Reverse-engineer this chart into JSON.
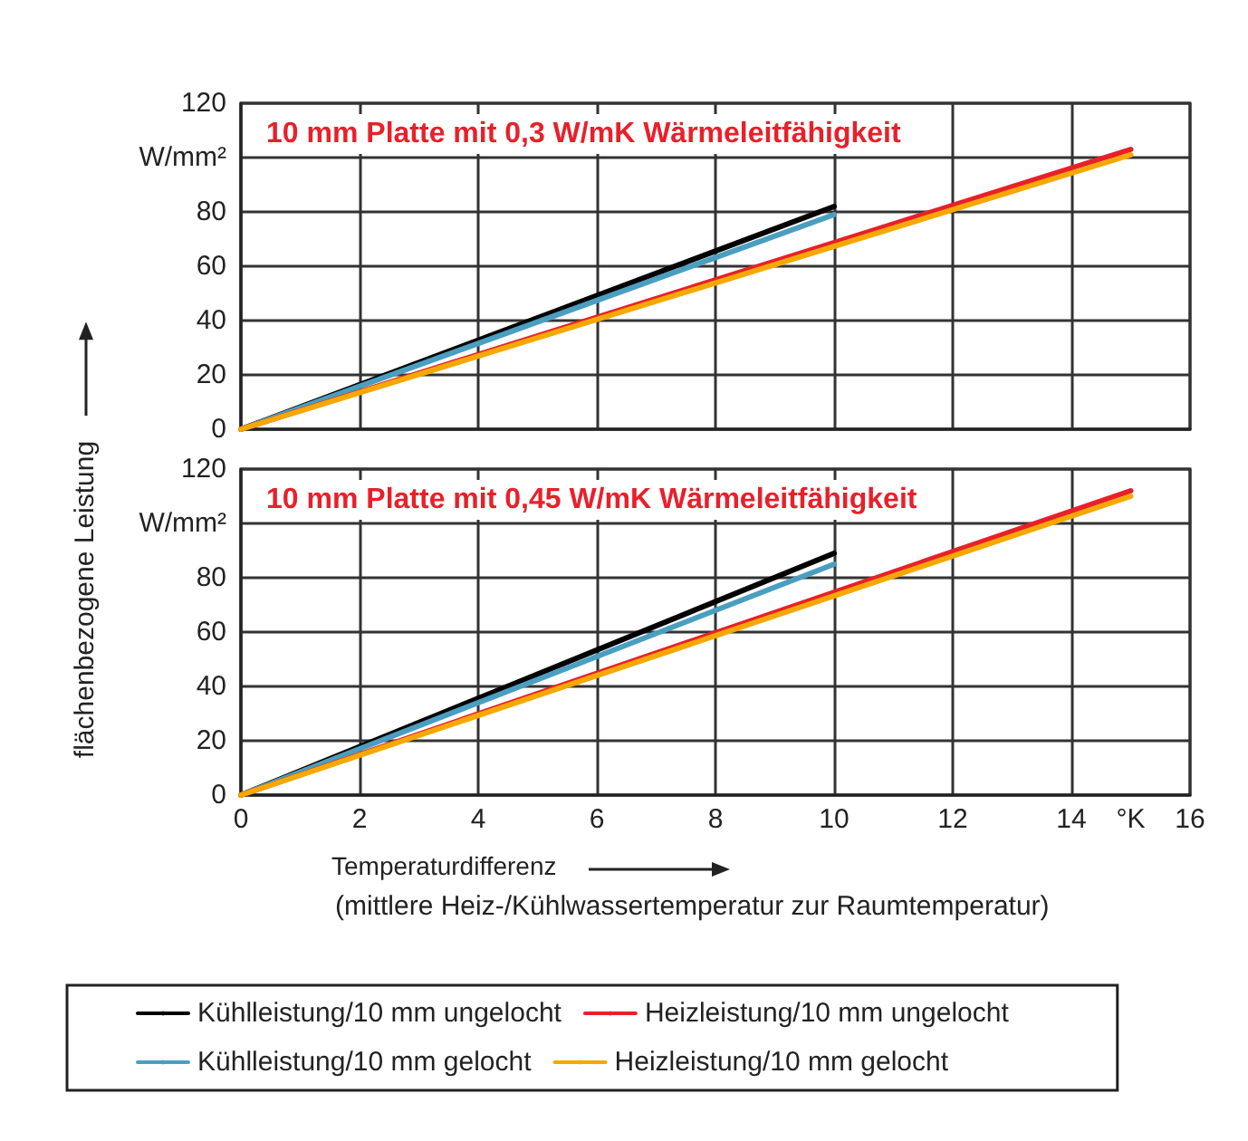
{
  "chart_data": [
    {
      "type": "line",
      "title": "10 mm Platte mit 0,3 W/mK Wärmeleitfähigkeit",
      "ylabel": "flächenbezogene Leistung",
      "xlim": [
        0,
        16
      ],
      "xticks": [
        0,
        2,
        4,
        6,
        8,
        10,
        12,
        14,
        16
      ],
      "ylim": [
        0,
        120
      ],
      "yticks": [
        0,
        20,
        40,
        60,
        80,
        {
          "value": 100,
          "label": "W/mm²"
        },
        120
      ],
      "grid": true,
      "tick_labels": "y",
      "legend": false,
      "series": [
        {
          "color": "#000000",
          "x": [
            0,
            10
          ],
          "values": [
            0,
            82
          ]
        },
        {
          "color": "#4a9fc0",
          "x": [
            0,
            10
          ],
          "values": [
            0,
            79
          ]
        },
        {
          "color": "#e8202a",
          "x": [
            0,
            15
          ],
          "values": [
            0,
            103
          ]
        },
        {
          "color": "#f5a800",
          "x": [
            0,
            15
          ],
          "values": [
            0,
            101
          ]
        }
      ]
    },
    {
      "type": "line",
      "title": "10 mm Platte mit 0,45 W/mK Wärmeleitfähigkeit",
      "xlabel": "Temperaturdifferenz",
      "annotations": [
        "°K",
        "(mittlere Heiz-/Kühlwassertemperatur zur Raumtemperatur)"
      ],
      "xlim": [
        0,
        16
      ],
      "xticks": [
        0,
        2,
        4,
        6,
        8,
        10,
        12,
        14,
        16
      ],
      "ylim": [
        0,
        120
      ],
      "yticks": [
        0,
        20,
        40,
        60,
        80,
        {
          "value": 100,
          "label": "W/mm²"
        },
        120
      ],
      "grid": true,
      "legend": "bottom",
      "series": [
        {
          "name": "Kühlleistung/10 mm ungelocht",
          "color": "#000000",
          "x": [
            0,
            10
          ],
          "values": [
            0,
            89
          ]
        },
        {
          "name": "Kühlleistung/10 mm gelocht",
          "color": "#4a9fc0",
          "x": [
            0,
            10
          ],
          "values": [
            0,
            85
          ]
        },
        {
          "name": "Heizleistung/10 mm ungelocht",
          "color": "#e8202a",
          "x": [
            0,
            15
          ],
          "values": [
            0,
            112
          ]
        },
        {
          "name": "Heizleistung/10 mm gelocht",
          "color": "#f5a800",
          "x": [
            0,
            15
          ],
          "values": [
            0,
            110
          ]
        }
      ]
    }
  ]
}
